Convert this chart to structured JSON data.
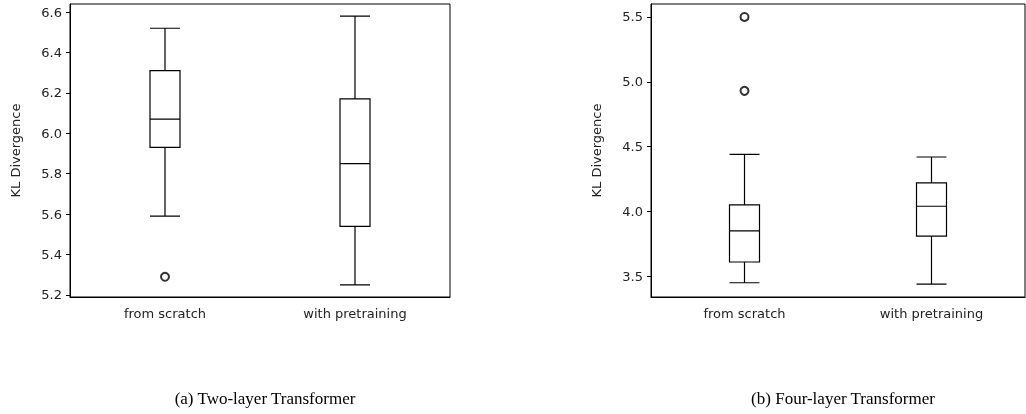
{
  "chart_data": [
    {
      "type": "box",
      "title": "(a) Two-layer Transformer",
      "ylabel": "KL Divergence",
      "categories": [
        "from scratch",
        "with pretraining"
      ],
      "boxes": [
        {
          "low": 5.59,
          "q1": 5.93,
          "median": 6.07,
          "q3": 6.31,
          "high": 6.52,
          "outliers": [
            5.29
          ]
        },
        {
          "low": 5.25,
          "q1": 5.54,
          "median": 5.85,
          "q3": 6.17,
          "high": 6.58
        }
      ],
      "ylim": [
        5.19,
        6.64
      ],
      "yticks": [
        5.2,
        5.4,
        5.6,
        5.8,
        {
          "value": 6,
          "label": "6.0"
        },
        6.2,
        6.4,
        6.6
      ],
      "grid": false
    },
    {
      "type": "box",
      "title": "(b) Four-layer Transformer",
      "ylabel": "KL Divergence",
      "categories": [
        "from scratch",
        "with pretraining"
      ],
      "boxes": [
        {
          "low": 3.45,
          "q1": 3.61,
          "median": 3.85,
          "q3": 4.05,
          "high": 4.44,
          "outliers": [
            4.93,
            5.5
          ]
        },
        {
          "low": 3.44,
          "q1": 3.81,
          "median": 4.04,
          "q3": 4.22,
          "high": 4.42
        }
      ],
      "ylim": [
        3.34,
        5.6
      ],
      "yticks": [
        3.5,
        {
          "value": 4,
          "label": "4.0"
        },
        4.5,
        {
          "value": 5,
          "label": "5.0"
        },
        5.5
      ],
      "grid": false
    }
  ]
}
